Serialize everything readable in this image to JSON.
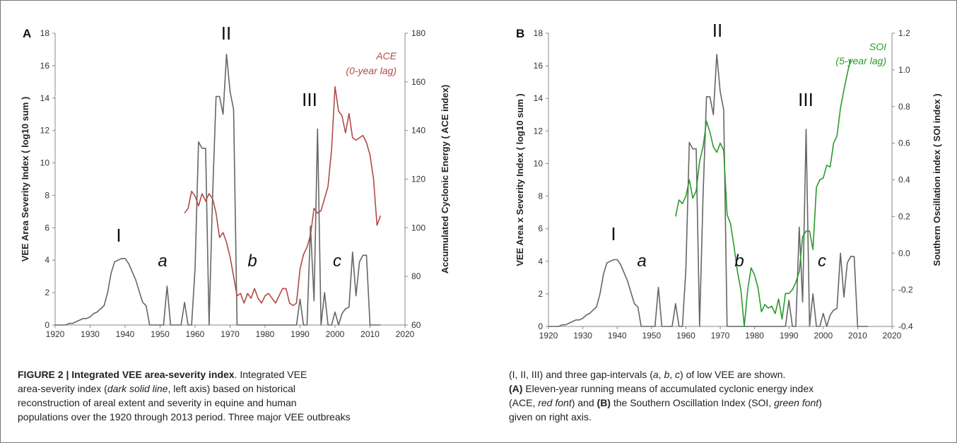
{
  "chart_data": [
    {
      "type": "line",
      "panel": "A",
      "xlim": [
        1920,
        2020
      ],
      "x_ticks": [
        "1920",
        "1930",
        "1940",
        "1950",
        "1960",
        "1970",
        "1980",
        "1990",
        "2000",
        "2010",
        "2020"
      ],
      "ylim": [
        0,
        18
      ],
      "y_ticks": [
        "0",
        "2",
        "4",
        "6",
        "8",
        "10",
        "12",
        "14",
        "16",
        "18"
      ],
      "ylabel": "VEE Area Severity Index  ( log10 sum )",
      "y2lim": [
        60,
        180
      ],
      "y2_ticks": [
        "60",
        "80",
        "100",
        "120",
        "140",
        "160",
        "180"
      ],
      "y2label": "Accumulated Cyclonic Energy  ( ACE index)",
      "annotations": {
        "roman": [
          "I",
          "II",
          "III"
        ],
        "gaps": [
          "a",
          "b",
          "c"
        ]
      },
      "series": [
        {
          "axis": "left",
          "color": "#666666",
          "x": [
            1920,
            1921,
            1922,
            1923,
            1924,
            1925,
            1926,
            1927,
            1928,
            1929,
            1930,
            1931,
            1932,
            1933,
            1934,
            1935,
            1936,
            1937,
            1938,
            1939,
            1940,
            1941,
            1942,
            1943,
            1944,
            1945,
            1946,
            1947,
            1948,
            1949,
            1950,
            1951,
            1952,
            1953,
            1954,
            1955,
            1956,
            1957,
            1958,
            1959,
            1960,
            1961,
            1962,
            1963,
            1964,
            1965,
            1966,
            1967,
            1968,
            1969,
            1970,
            1971,
            1972,
            1973,
            1974,
            1975,
            1976,
            1977,
            1978,
            1979,
            1980,
            1981,
            1982,
            1983,
            1984,
            1985,
            1986,
            1987,
            1988,
            1989,
            1990,
            1991,
            1992,
            1993,
            1994,
            1995,
            1996,
            1997,
            1998,
            1999,
            2000,
            2001,
            2002,
            2003,
            2004,
            2005,
            2006,
            2007,
            2008,
            2009,
            2010,
            2011,
            2012,
            2013
          ],
          "y": [
            0,
            0,
            0,
            0,
            0.1,
            0.1,
            0.2,
            0.3,
            0.4,
            0.4,
            0.5,
            0.7,
            0.8,
            1.0,
            1.2,
            2.0,
            3.2,
            3.9,
            4.0,
            4.1,
            4.1,
            3.8,
            3.3,
            2.8,
            2.1,
            1.4,
            1.2,
            0,
            0,
            0,
            0,
            0,
            2.4,
            0,
            0,
            0,
            0,
            1.4,
            0,
            0,
            3.5,
            11.3,
            10.9,
            10.9,
            0,
            8.0,
            14.1,
            14.1,
            13.0,
            16.7,
            14.4,
            13.3,
            0,
            0,
            0,
            0,
            0,
            0,
            0,
            0,
            0,
            0,
            0,
            0,
            0,
            0,
            0,
            0,
            0,
            0,
            1.6,
            0,
            0,
            6.1,
            1.5,
            12.1,
            0,
            2.0,
            0,
            0,
            0.8,
            0,
            0.7,
            1.0,
            1.1,
            4.5,
            1.8,
            3.9,
            4.3,
            4.3,
            0,
            0,
            0,
            0
          ]
        },
        {
          "name": "ACE",
          "axis": "right",
          "color": "#b24a45",
          "label_lines": [
            "ACE",
            "(0-year lag)"
          ],
          "x": [
            1957,
            1958,
            1959,
            1960,
            1961,
            1962,
            1963,
            1964,
            1965,
            1966,
            1967,
            1968,
            1969,
            1970,
            1971,
            1972,
            1973,
            1974,
            1975,
            1976,
            1977,
            1978,
            1979,
            1980,
            1981,
            1982,
            1983,
            1984,
            1985,
            1986,
            1987,
            1988,
            1989,
            1990,
            1991,
            1992,
            1993,
            1994,
            1995,
            1996,
            1997,
            1998,
            1999,
            2000,
            2001,
            2002,
            2003,
            2004,
            2005,
            2006,
            2007,
            2008,
            2009,
            2010,
            2011,
            2012,
            2013
          ],
          "y": [
            106,
            108,
            115,
            113,
            109,
            114,
            111,
            114,
            112,
            106,
            96,
            98,
            94,
            88,
            80,
            72,
            73,
            69,
            73,
            71,
            75,
            71,
            69,
            72,
            73,
            71,
            69,
            72,
            75,
            75,
            69,
            68,
            69,
            83,
            89,
            92,
            97,
            108,
            106,
            107,
            112,
            117,
            132,
            158,
            148,
            146,
            139,
            147,
            137,
            136,
            137,
            138,
            135,
            130,
            120,
            101,
            105
          ]
        }
      ]
    },
    {
      "type": "line",
      "panel": "B",
      "xlim": [
        1920,
        2020
      ],
      "x_ticks": [
        "1920",
        "1930",
        "1940",
        "1950",
        "1960",
        "1970",
        "1980",
        "1990",
        "2000",
        "2010",
        "2020"
      ],
      "ylim": [
        0,
        18
      ],
      "y_ticks": [
        "0",
        "2",
        "4",
        "6",
        "8",
        "10",
        "12",
        "14",
        "16",
        "18"
      ],
      "ylabel": "VEE Area x Severity Index  ( log10 sum )",
      "y2lim": [
        -0.4,
        1.2
      ],
      "y2_ticks": [
        "-0.4",
        "-0.2",
        "0.0",
        "0.2",
        "0.4",
        "0.6",
        "0.8",
        "1.0",
        "1.2"
      ],
      "y2label": "Southern Oscillation index  ( SOI index )",
      "annotations": {
        "roman": [
          "I",
          "II",
          "III"
        ],
        "gaps": [
          "a",
          "b",
          "c"
        ]
      },
      "series": [
        {
          "axis": "left",
          "color": "#666666",
          "x": [
            1920,
            1921,
            1922,
            1923,
            1924,
            1925,
            1926,
            1927,
            1928,
            1929,
            1930,
            1931,
            1932,
            1933,
            1934,
            1935,
            1936,
            1937,
            1938,
            1939,
            1940,
            1941,
            1942,
            1943,
            1944,
            1945,
            1946,
            1947,
            1948,
            1949,
            1950,
            1951,
            1952,
            1953,
            1954,
            1955,
            1956,
            1957,
            1958,
            1959,
            1960,
            1961,
            1962,
            1963,
            1964,
            1965,
            1966,
            1967,
            1968,
            1969,
            1970,
            1971,
            1972,
            1973,
            1974,
            1975,
            1976,
            1977,
            1978,
            1979,
            1980,
            1981,
            1982,
            1983,
            1984,
            1985,
            1986,
            1987,
            1988,
            1989,
            1990,
            1991,
            1992,
            1993,
            1994,
            1995,
            1996,
            1997,
            1998,
            1999,
            2000,
            2001,
            2002,
            2003,
            2004,
            2005,
            2006,
            2007,
            2008,
            2009,
            2010,
            2011,
            2012,
            2013
          ],
          "y": [
            0,
            0,
            0,
            0,
            0.1,
            0.1,
            0.2,
            0.3,
            0.4,
            0.4,
            0.5,
            0.7,
            0.8,
            1.0,
            1.2,
            2.0,
            3.2,
            3.9,
            4.0,
            4.1,
            4.1,
            3.8,
            3.3,
            2.8,
            2.1,
            1.4,
            1.2,
            0,
            0,
            0,
            0,
            0,
            2.4,
            0,
            0,
            0,
            0,
            1.4,
            0,
            0,
            3.5,
            11.3,
            10.9,
            10.9,
            0,
            8.0,
            14.1,
            14.1,
            13.0,
            16.7,
            14.4,
            13.3,
            0,
            0,
            0,
            0,
            0,
            0,
            0,
            0,
            0,
            0,
            0,
            0,
            0,
            0,
            0,
            0,
            0,
            0,
            1.6,
            0,
            0,
            6.1,
            1.5,
            12.1,
            0,
            2.0,
            0,
            0,
            0.8,
            0,
            0.7,
            1.0,
            1.1,
            4.5,
            1.8,
            3.9,
            4.3,
            4.3,
            0,
            0,
            0,
            0
          ]
        },
        {
          "name": "SOI",
          "axis": "right",
          "color": "#2a9a2a",
          "label_lines": [
            "SOI",
            "(5-year lag)"
          ],
          "x": [
            1957,
            1958,
            1959,
            1960,
            1961,
            1962,
            1963,
            1964,
            1965,
            1966,
            1967,
            1968,
            1969,
            1970,
            1971,
            1972,
            1973,
            1974,
            1975,
            1976,
            1977,
            1978,
            1979,
            1980,
            1981,
            1982,
            1983,
            1984,
            1985,
            1986,
            1987,
            1988,
            1989,
            1990,
            1991,
            1992,
            1993,
            1994,
            1995,
            1996,
            1997,
            1998,
            1999,
            2000,
            2001,
            2002,
            2003,
            2004,
            2005,
            2006,
            2007,
            2008
          ],
          "y": [
            0.2,
            0.29,
            0.27,
            0.31,
            0.4,
            0.3,
            0.34,
            0.5,
            0.58,
            0.72,
            0.66,
            0.58,
            0.55,
            0.6,
            0.56,
            0.21,
            0.16,
            0.04,
            -0.1,
            -0.2,
            -0.4,
            -0.2,
            -0.08,
            -0.12,
            -0.19,
            -0.32,
            -0.28,
            -0.3,
            -0.29,
            -0.33,
            -0.25,
            -0.36,
            -0.22,
            -0.22,
            -0.2,
            -0.16,
            -0.1,
            0.09,
            0.12,
            0.12,
            0.02,
            0.36,
            0.4,
            0.41,
            0.48,
            0.47,
            0.6,
            0.64,
            0.79,
            0.89,
            0.98,
            1.06
          ]
        }
      ]
    }
  ],
  "caption": {
    "left_title": "FIGURE 2 | Integrated VEE area-severity index",
    "left_line1": ". Integrated VEE",
    "left_line2a": "area-severity index (",
    "left_line2_ital": "dark solid line",
    "left_line2b": ", left axis) based on historical",
    "left_line3": "reconstruction of areal extent and severity in equine and human",
    "left_line4": "populations over the 1920 through 2013 period. Three major VEE outbreaks",
    "right_line1a": "(I, II, III) and three gap-intervals (",
    "right_a": "a",
    "right_sep1": ", ",
    "right_b": "b",
    "right_sep2": ", ",
    "right_c": "c",
    "right_line1b": ") of low VEE are shown.",
    "right_A": "(A)",
    "right_line2": " Eleven-year running means of accumulated cyclonic energy index",
    "right_line3a": "(ACE, ",
    "right_line3_ital": "red font",
    "right_line3b": ") and ",
    "right_B": "(B)",
    "right_line3c": " the Southern Oscillation Index (SOI, ",
    "right_line3_ital2": "green font",
    "right_line3d": ")",
    "right_line4": "given on right axis."
  }
}
